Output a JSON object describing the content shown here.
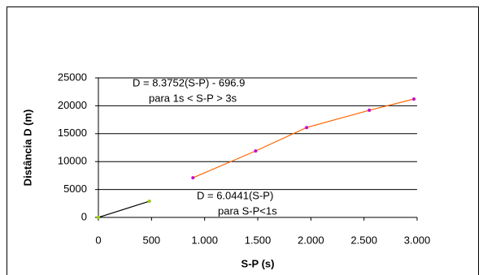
{
  "chart_data": {
    "type": "scatter",
    "xlabel": "S-P (s)",
    "ylabel": "Distância D (m)",
    "xlim": [
      0,
      3000
    ],
    "xticks": [
      0,
      500,
      {
        "value": 1000,
        "label": "1.000"
      },
      {
        "value": 1500,
        "label": "1.500"
      },
      {
        "value": 2000,
        "label": "2.000"
      },
      {
        "value": 2500,
        "label": "2.500"
      },
      {
        "value": 3000,
        "label": "3.000"
      }
    ],
    "ylim": [
      0,
      25000
    ],
    "yticks": [
      0,
      5000,
      10000,
      15000,
      20000,
      25000
    ],
    "grid": true,
    "series": [
      {
        "color": "#000000",
        "marker_color": "#99cc00",
        "x": [
          0,
          480
        ],
        "values": [
          0,
          2900
        ]
      },
      {
        "color": "#ff6600",
        "marker_color": "#cc00cc",
        "x": [
          890,
          1480,
          1960,
          2550,
          2970
        ],
        "values": [
          7100,
          11900,
          16100,
          19200,
          21200
        ]
      }
    ],
    "annotations": [
      "D = 8.3752(S-P) - 696.9",
      "para  1s < S-P > 3s",
      "D = 6.0441(S-P)",
      "para S-P<1s"
    ]
  }
}
